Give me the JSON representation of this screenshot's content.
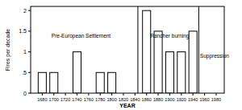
{
  "chart_data": {
    "type": "bar",
    "x_label": "YEAR",
    "y_label": "Fires per decade",
    "x": [
      1680,
      1700,
      1740,
      1780,
      1800,
      1860,
      1880,
      1900,
      1920,
      1940
    ],
    "values": [
      0.5,
      0.5,
      1,
      0.5,
      0.5,
      2,
      1.5,
      1,
      1,
      1.5
    ],
    "color": "#ffffff",
    "xlim": [
      1660,
      1994
    ],
    "xticks": [
      1680,
      1700,
      1720,
      1740,
      1760,
      1780,
      1800,
      1820,
      1840,
      1860,
      1880,
      1900,
      1920,
      1940,
      1960,
      1980
    ],
    "ylim": [
      0,
      2.1
    ],
    "yticks": [
      0,
      {
        "value": 0.5,
        "label": ".5"
      },
      1,
      1.5,
      2
    ],
    "grid": false,
    "vlines": [
      1845,
      1950
    ],
    "annotations": [
      {
        "text": "Pre-European Settlement",
        "x": 1747,
        "y": 1.35
      },
      {
        "text": "Rancher burning",
        "x": 1900,
        "y": 1.35
      },
      {
        "text": "Suppression",
        "x": 1952,
        "y": 0.85
      }
    ]
  }
}
